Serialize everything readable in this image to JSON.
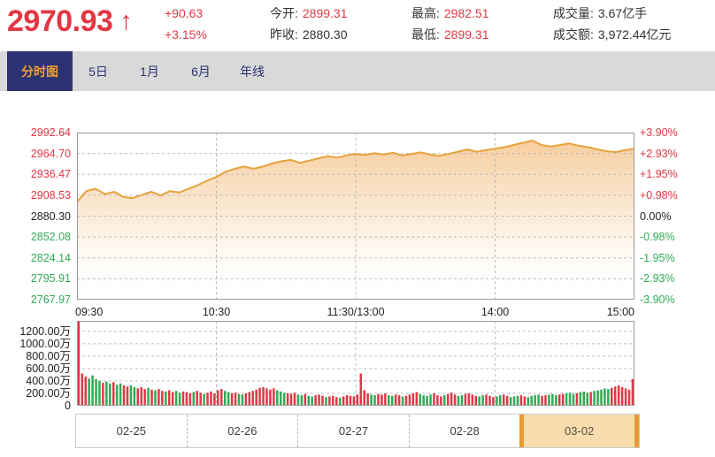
{
  "colors": {
    "up": "#e23744",
    "down": "#31ab54",
    "flat": "#333333",
    "navy": "#2b3274",
    "tab_accent": "#f09e2f",
    "line": "#e6a23c",
    "date_selected_fill": "#f8dcae",
    "date_selected_border": "#e89a33"
  },
  "header": {
    "price": "2970.93",
    "arrow": "↑",
    "change": "+90.63",
    "change_pct": "+3.15%",
    "stats": [
      {
        "label": "今开:",
        "value": "2899.31",
        "tone": "up"
      },
      {
        "label": "昨收:",
        "value": "2880.30",
        "tone": "flat"
      },
      {
        "label": "最高:",
        "value": "2982.51",
        "tone": "up"
      },
      {
        "label": "最低:",
        "value": "2899.31",
        "tone": "up"
      },
      {
        "label": "成交量:",
        "value": "3.67亿手",
        "tone": "flat"
      },
      {
        "label": "成交额:",
        "value": "3,972.44亿元",
        "tone": "flat"
      }
    ]
  },
  "tabs": [
    {
      "label": "分时图",
      "selected": true
    },
    {
      "label": "5日",
      "selected": false
    },
    {
      "label": "1月",
      "selected": false
    },
    {
      "label": "6月",
      "selected": false
    },
    {
      "label": "年线",
      "selected": false
    }
  ],
  "date_tabs": [
    {
      "label": "02-25",
      "selected": false
    },
    {
      "label": "02-26",
      "selected": false
    },
    {
      "label": "02-27",
      "selected": false
    },
    {
      "label": "02-28",
      "selected": false
    },
    {
      "label": "03-02",
      "selected": true
    }
  ],
  "chart_data": {
    "type": "line",
    "prev_close": 2880.3,
    "price_range": [
      2767.97,
      2992.64
    ],
    "price_axis_left": [
      "2992.64",
      "2964.70",
      "2936.47",
      "2908.53",
      "2880.30",
      "2852.08",
      "2824.14",
      "2795.91",
      "2767.97"
    ],
    "pct_axis_right": [
      "+3.90%",
      "+2.93%",
      "+1.95%",
      "+0.98%",
      "0.00%",
      "-0.98%",
      "-1.95%",
      "-2.93%",
      "-3.90%"
    ],
    "x_total_minutes": 240,
    "x_ticks": [
      {
        "t": "09:30",
        "min": 0,
        "align": "start"
      },
      {
        "t": "10:30",
        "min": 60,
        "align": "middle"
      },
      {
        "t": "11:30/13:00",
        "min": 120,
        "align": "middle"
      },
      {
        "t": "14:00",
        "min": 180,
        "align": "middle"
      },
      {
        "t": "15:00",
        "min": 240,
        "align": "end"
      }
    ],
    "grid_verticals_min": [
      60,
      120,
      180
    ],
    "price_series": {
      "step_minutes": 4,
      "values": [
        2899.3,
        2914,
        2917,
        2910,
        2913,
        2906,
        2904.5,
        2909,
        2913,
        2908,
        2914,
        2912,
        2917,
        2922,
        2928,
        2933,
        2940,
        2944,
        2947,
        2944,
        2947,
        2951,
        2954,
        2956,
        2952,
        2955,
        2958,
        2961,
        2959,
        2962,
        2964,
        2962.5,
        2965,
        2963,
        2965.5,
        2962,
        2964,
        2966,
        2963,
        2961.5,
        2964,
        2967,
        2970,
        2967,
        2969,
        2971,
        2973,
        2976,
        2979,
        2982,
        2976,
        2974,
        2976,
        2978,
        2975,
        2973,
        2970,
        2967.5,
        2966.5,
        2969,
        2970.93
      ]
    },
    "volume_axis": [
      {
        "t": "1200.00万",
        "v": 1200
      },
      {
        "t": "1000.00万",
        "v": 1000
      },
      {
        "t": "800.00万",
        "v": 800
      },
      {
        "t": "600.00万",
        "v": 600
      },
      {
        "t": "400.00万",
        "v": 400
      },
      {
        "t": "200.00万",
        "v": 200
      },
      {
        "t": "0",
        "v": 0
      }
    ],
    "volume_scale_max": 1370,
    "volume_series": {
      "values_wan": [
        1370,
        520,
        470,
        440,
        490,
        430,
        400,
        370,
        390,
        360,
        380,
        340,
        360,
        330,
        310,
        330,
        300,
        280,
        300,
        270,
        290,
        260,
        250,
        270,
        240,
        230,
        250,
        220,
        240,
        210,
        230,
        220,
        200,
        220,
        240,
        210,
        190,
        210,
        230,
        200,
        250,
        270,
        240,
        220,
        200,
        210,
        190,
        180,
        200,
        220,
        240,
        260,
        290,
        300,
        280,
        260,
        280,
        250,
        230,
        210,
        200,
        190,
        210,
        180,
        170,
        190,
        160,
        150,
        170,
        180,
        160,
        140,
        150,
        160,
        140,
        130,
        150,
        170,
        160,
        150,
        180,
        520,
        250,
        200,
        180,
        170,
        190,
        180,
        200,
        170,
        160,
        180,
        170,
        150,
        160,
        180,
        200,
        220,
        190,
        170,
        160,
        180,
        200,
        170,
        150,
        170,
        190,
        210,
        180,
        160,
        170,
        190,
        200,
        180,
        160,
        150,
        170,
        180,
        160,
        140,
        150,
        170,
        180,
        160,
        140,
        150,
        160,
        170,
        150,
        140,
        160,
        170,
        180,
        160,
        170,
        180,
        190,
        170,
        180,
        190,
        200,
        210,
        190,
        200,
        220,
        230,
        210,
        220,
        240,
        250,
        260,
        280,
        270,
        290,
        310,
        330,
        300,
        280,
        260,
        430
      ],
      "colors": "rrrggggrggrggrrggrrrgrgrrgrrggrrrgrrgrrrrrggrrggrrrrrrrrrgggrrrggrggrrrgrrrgrrrrrrrrggrrrggrrgrrrrggggrrrgrrrggrrrrggrrrggrrgggrrggggrrgggrrgggrgggrgggggrrrrrrrr"
    }
  }
}
